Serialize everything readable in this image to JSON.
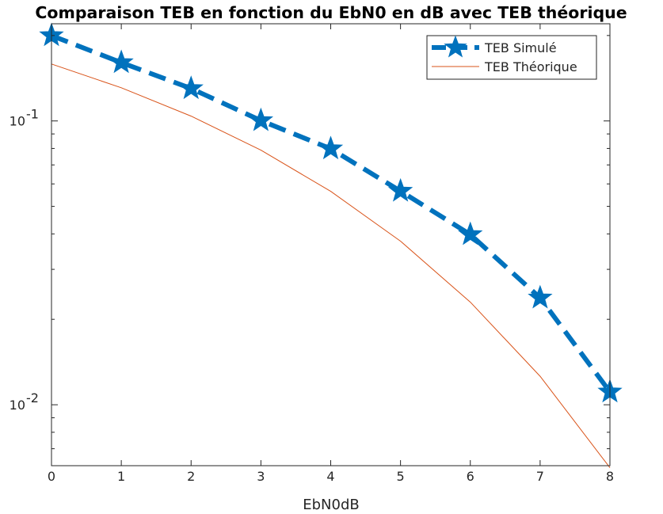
{
  "chart_data": {
    "type": "line",
    "title": "Comparaison TEB en fonction du EbN0 en dB avec TEB théorique",
    "xlabel": "EbN0dB",
    "ylabel": "",
    "x": [
      0,
      1,
      2,
      3,
      4,
      5,
      6,
      7,
      8
    ],
    "xlim": [
      0,
      8
    ],
    "ylim": [
      0.0061,
      0.22
    ],
    "yscale": "log",
    "xticks": [
      "0",
      "1",
      "2",
      "3",
      "4",
      "5",
      "6",
      "7",
      "8"
    ],
    "yticks": [
      {
        "value": 0.1,
        "base": "10",
        "exp": "-1"
      },
      {
        "value": 0.01,
        "base": "10",
        "exp": "-2"
      }
    ],
    "grid": false,
    "legend_position": "top-right",
    "series": [
      {
        "name": "TEB Simulé",
        "values": [
          0.1999,
          0.1606,
          0.1301,
          0.1003,
          0.0798,
          0.0566,
          0.0398,
          0.0238,
          0.0111
        ],
        "color": "#0072BD",
        "style": "dashed",
        "marker": "star"
      },
      {
        "name": "TEB Théorique",
        "values": [
          0.1587,
          0.1309,
          0.104,
          0.0789,
          0.0565,
          0.0377,
          0.023,
          0.0126,
          0.006
        ],
        "color": "#D95319",
        "style": "solid",
        "marker": "none"
      }
    ]
  }
}
